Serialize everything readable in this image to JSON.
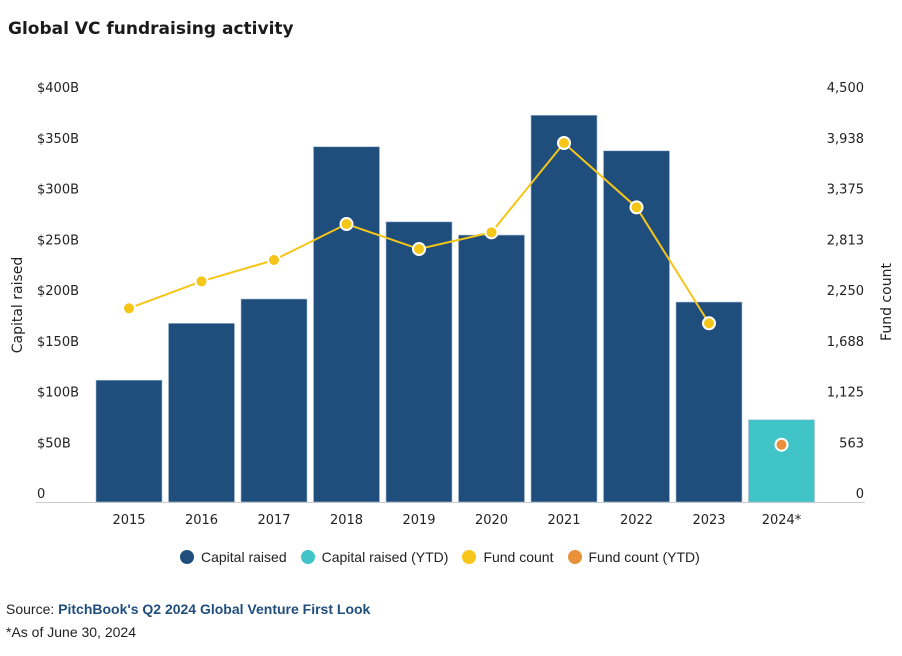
{
  "chart_data": {
    "type": "bar",
    "title": "Global VC fundraising activity",
    "categories": [
      "2015",
      "2016",
      "2017",
      "2018",
      "2019",
      "2020",
      "2021",
      "2022",
      "2023",
      "2024*"
    ],
    "series": [
      {
        "name": "Capital raised",
        "type": "bar",
        "axis": "left",
        "values": [
          120,
          176,
          200,
          350,
          276,
          263,
          381,
          346,
          197,
          null
        ]
      },
      {
        "name": "Capital raised (YTD)",
        "type": "bar",
        "axis": "left",
        "values": [
          null,
          null,
          null,
          null,
          null,
          null,
          null,
          null,
          null,
          81
        ]
      },
      {
        "name": "Fund count",
        "type": "line",
        "axis": "right",
        "values": [
          2147,
          2446,
          2682,
          3081,
          2804,
          2989,
          3979,
          3266,
          1981,
          null
        ]
      },
      {
        "name": "Fund count (YTD)",
        "type": "scatter",
        "axis": "right",
        "values": [
          null,
          null,
          null,
          null,
          null,
          null,
          null,
          null,
          null,
          635
        ]
      }
    ],
    "ylabel": "Capital raised",
    "y2label": "Fund count",
    "ylim": [
      0,
      400
    ],
    "y2lim": [
      0,
      4500
    ],
    "yticks": [
      "0",
      "$50B",
      "$100B",
      "$150B",
      "$200B",
      "$250B",
      "$300B",
      "$350B",
      "$400B"
    ],
    "y2ticks": [
      "0",
      "563",
      "1,125",
      "1,688",
      "2,250",
      "2,813",
      "3,375",
      "3,938",
      "4,500"
    ],
    "legend_position": "bottom",
    "colors": {
      "capital": "#1f4e7d",
      "capital_ytd": "#40c4c8",
      "fund": "#f5c518",
      "fund_ytd": "#e8913a"
    }
  },
  "legend": [
    "Capital raised",
    "Capital raised (YTD)",
    "Fund count",
    "Fund count (YTD)"
  ],
  "source": {
    "prefix": "Source: ",
    "link": "PitchBook's Q2 2024 Global Venture First Look"
  },
  "note": "*As of June 30, 2024"
}
